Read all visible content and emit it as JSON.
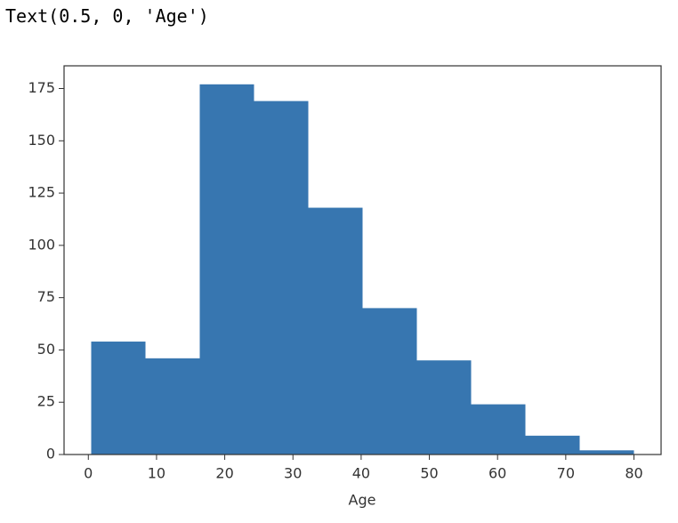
{
  "output_text": "Text(0.5, 0, 'Age')",
  "chart_data": {
    "type": "histogram",
    "xlabel": "Age",
    "color": "#3776b0",
    "bins": [
      0.42,
      8.378,
      16.336,
      24.294,
      32.252,
      40.21,
      48.168,
      56.126,
      64.084,
      72.042,
      80.0
    ],
    "values": [
      54,
      46,
      177,
      169,
      118,
      70,
      45,
      24,
      9,
      2
    ],
    "xlim": [
      -3.559,
      83.979
    ],
    "ylim": [
      0,
      185.85
    ],
    "xticks": [
      0,
      10,
      20,
      30,
      40,
      50,
      60,
      70,
      80
    ],
    "yticks": [
      0,
      25,
      50,
      75,
      100,
      125,
      150,
      175
    ]
  }
}
